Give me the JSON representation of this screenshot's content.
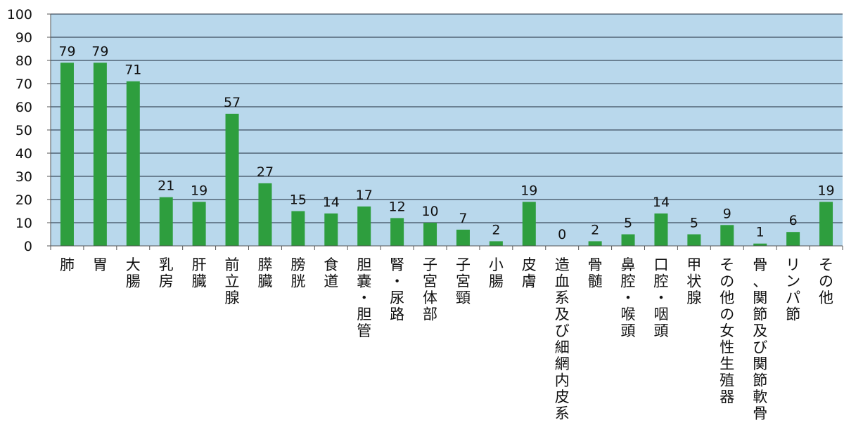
{
  "chart_data": {
    "type": "bar",
    "categories": [
      "肺",
      "胃",
      "大腸",
      "乳房",
      "肝臓",
      "前立腺",
      "膵臓",
      "膀胱",
      "食道",
      "胆嚢・胆管",
      "腎・尿路",
      "子宮体部",
      "子宮頸",
      "小腸",
      "皮膚",
      "造血系及び細網内皮系",
      "骨髄",
      "鼻腔・喉頭",
      "口腔・咽頭",
      "甲状腺",
      "その他の女性生殖器",
      "骨、関節及び関節軟骨",
      "リンパ節",
      "その他"
    ],
    "values": [
      79,
      79,
      71,
      21,
      19,
      57,
      27,
      15,
      14,
      17,
      12,
      10,
      7,
      2,
      19,
      0,
      2,
      5,
      14,
      5,
      9,
      1,
      6,
      19
    ],
    "yticks": [
      0,
      10,
      20,
      30,
      40,
      50,
      60,
      70,
      80,
      90,
      100
    ],
    "ylim": [
      0,
      100
    ],
    "title": "",
    "xlabel": "",
    "ylabel": "",
    "grid": true,
    "colors": {
      "bar": "#2e9e3e",
      "plot_bg": "#b9d8ec",
      "grid": "#1d2a3a"
    }
  }
}
